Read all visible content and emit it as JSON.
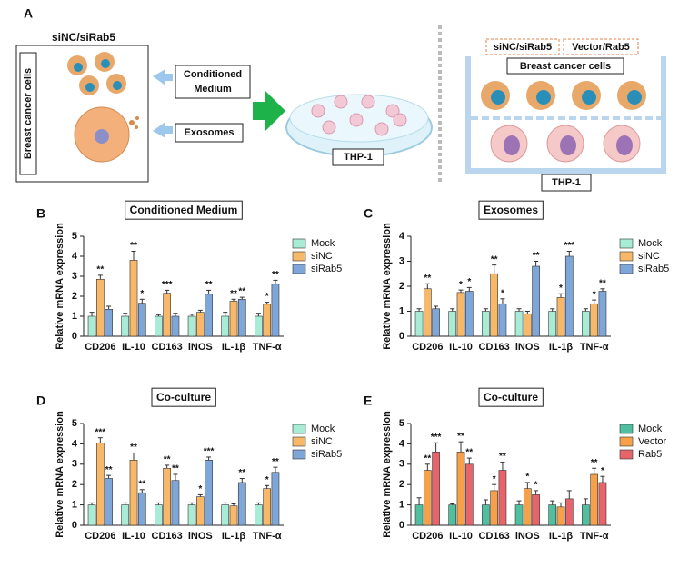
{
  "panel_a": {
    "letter": "A",
    "left_label": "siNC/siRab5",
    "cells_label": "Breast cancer cells",
    "conditioned_medium": [
      "Conditioned",
      "Medium"
    ],
    "exosomes": "Exosomes",
    "dish_label": "THP-1",
    "transwell_tag_1": "siNC/siRab5",
    "transwell_tag_2": "Vector/Rab5",
    "transwell_top": "Breast cancer cells",
    "transwell_bottom": "THP-1"
  },
  "chart_data": [
    {
      "type": "bar",
      "panel": "B",
      "title": "Conditioned Medium",
      "y_label": "Relative mRNA expression",
      "categories": [
        "CD206",
        "IL-10",
        "CD163",
        "iNOS",
        "IL-1β",
        "TNF-α"
      ],
      "ylim": [
        0,
        5
      ],
      "yticks": [
        0,
        1,
        2,
        3,
        4,
        5
      ],
      "series": [
        {
          "name": "Mock",
          "color": "#a8ecd6",
          "values": [
            1,
            1,
            1,
            1,
            1,
            1
          ],
          "errors": [
            0.2,
            0.15,
            0.08,
            0.1,
            0.2,
            0.15
          ],
          "annotations": [
            null,
            null,
            null,
            null,
            null,
            null
          ]
        },
        {
          "name": "siNC",
          "color": "#f7b86a",
          "values": [
            2.85,
            3.8,
            2.15,
            1.2,
            1.75,
            1.6
          ],
          "errors": [
            0.2,
            0.45,
            0.15,
            0.1,
            0.1,
            0.1
          ],
          "annotations": [
            "**",
            "**",
            "***",
            null,
            "**",
            "*"
          ]
        },
        {
          "name": "siRab5",
          "color": "#7fa6d9",
          "values": [
            1.35,
            1.65,
            1.0,
            2.1,
            1.85,
            2.6
          ],
          "errors": [
            0.15,
            0.2,
            0.15,
            0.2,
            0.1,
            0.2
          ],
          "annotations": [
            null,
            "*",
            null,
            "**",
            "**",
            "**"
          ]
        }
      ]
    },
    {
      "type": "bar",
      "panel": "C",
      "title": "Exosomes",
      "y_label": "Relative mRNA expression",
      "categories": [
        "CD206",
        "IL-10",
        "CD163",
        "iNOS",
        "IL-1β",
        "TNF-α"
      ],
      "ylim": [
        0,
        4
      ],
      "yticks": [
        0,
        1,
        2,
        3,
        4
      ],
      "series": [
        {
          "name": "Mock",
          "color": "#a8ecd6",
          "values": [
            1,
            1,
            1,
            1,
            1,
            1
          ],
          "errors": [
            0.1,
            0.1,
            0.1,
            0.1,
            0.1,
            0.1
          ],
          "annotations": [
            null,
            null,
            null,
            null,
            null,
            null
          ]
        },
        {
          "name": "siNC",
          "color": "#f7b86a",
          "values": [
            1.9,
            1.75,
            2.5,
            0.9,
            1.55,
            1.3
          ],
          "errors": [
            0.2,
            0.1,
            0.35,
            0.1,
            0.15,
            0.15
          ],
          "annotations": [
            "**",
            "*",
            "**",
            null,
            "*",
            "*"
          ]
        },
        {
          "name": "siRab5",
          "color": "#7fa6d9",
          "values": [
            1.1,
            1.8,
            1.3,
            2.8,
            3.2,
            1.8
          ],
          "errors": [
            0.1,
            0.15,
            0.2,
            0.2,
            0.2,
            0.1
          ],
          "annotations": [
            null,
            "*",
            "*",
            "**",
            "***",
            "**"
          ]
        }
      ]
    },
    {
      "type": "bar",
      "panel": "D",
      "title": "Co-culture",
      "y_label": "Relative mRNA expression",
      "categories": [
        "CD206",
        "IL-10",
        "CD163",
        "iNOS",
        "IL-1β",
        "TNF-α"
      ],
      "ylim": [
        0,
        5
      ],
      "yticks": [
        0,
        1,
        2,
        3,
        4,
        5
      ],
      "series": [
        {
          "name": "Mock",
          "color": "#a8ecd6",
          "values": [
            1,
            1,
            1,
            1,
            1,
            1
          ],
          "errors": [
            0.1,
            0.1,
            0.1,
            0.1,
            0.1,
            0.1
          ],
          "annotations": [
            null,
            null,
            null,
            null,
            null,
            null
          ]
        },
        {
          "name": "siNC",
          "color": "#f7b86a",
          "values": [
            4.05,
            3.2,
            2.8,
            1.4,
            0.95,
            1.8
          ],
          "errors": [
            0.25,
            0.35,
            0.15,
            0.1,
            0.1,
            0.15
          ],
          "annotations": [
            "***",
            "**",
            "**",
            "*",
            null,
            "*"
          ]
        },
        {
          "name": "siRab5",
          "color": "#7fa6d9",
          "values": [
            2.3,
            1.6,
            2.2,
            3.2,
            2.1,
            2.6
          ],
          "errors": [
            0.15,
            0.15,
            0.3,
            0.15,
            0.2,
            0.25
          ],
          "annotations": [
            "**",
            "**",
            "**",
            "***",
            "**",
            "**"
          ]
        }
      ]
    },
    {
      "type": "bar",
      "panel": "E",
      "title": "Co-culture",
      "y_label": "Relative mRNA expression",
      "categories": [
        "CD206",
        "IL-10",
        "CD163",
        "iNOS",
        "IL-1β",
        "TNF-α"
      ],
      "ylim": [
        0,
        5
      ],
      "yticks": [
        0,
        1,
        2,
        3,
        4,
        5
      ],
      "series": [
        {
          "name": "Mock",
          "color": "#4fbf9f",
          "values": [
            1,
            1,
            1,
            1,
            1,
            1
          ],
          "errors": [
            0.35,
            0.05,
            0.25,
            0.2,
            0.2,
            0.3
          ],
          "annotations": [
            null,
            null,
            null,
            null,
            null,
            null
          ]
        },
        {
          "name": "Vector",
          "color": "#f6a14a",
          "values": [
            2.7,
            3.6,
            1.7,
            1.8,
            0.9,
            2.5
          ],
          "errors": [
            0.3,
            0.5,
            0.3,
            0.3,
            0.2,
            0.3
          ],
          "annotations": [
            "**",
            "**",
            "*",
            "*",
            null,
            "**"
          ]
        },
        {
          "name": "Rab5",
          "color": "#e7646b",
          "values": [
            3.6,
            3.0,
            2.7,
            1.5,
            1.3,
            2.1
          ],
          "errors": [
            0.45,
            0.3,
            0.4,
            0.2,
            0.4,
            0.3
          ],
          "annotations": [
            "***",
            "**",
            "**",
            "*",
            null,
            "*"
          ]
        }
      ]
    }
  ]
}
